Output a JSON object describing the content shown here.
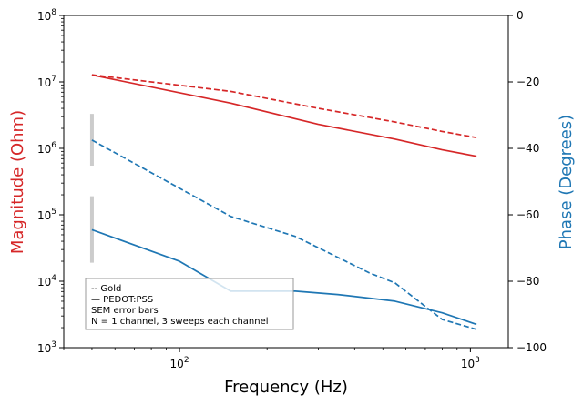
{
  "chart_data": {
    "type": "line",
    "xlabel": "Frequency (Hz)",
    "ylabel_left": "Magnitude (Ohm)",
    "ylabel_right": "Phase (Degrees)",
    "x_scale": "log",
    "y_left_scale": "log",
    "xlim": [
      40,
      1350
    ],
    "ylim_left": [
      1000,
      100000000
    ],
    "ylim_right": [
      -100,
      0
    ],
    "x_ticks": [
      {
        "value": 100,
        "label": "10",
        "exp": "2"
      },
      {
        "value": 1000,
        "label": "10",
        "exp": "3"
      }
    ],
    "y_left_ticks": [
      {
        "value": 1000,
        "label": "10",
        "exp": "3"
      },
      {
        "value": 10000,
        "label": "10",
        "exp": "4"
      },
      {
        "value": 100000,
        "label": "10",
        "exp": "5"
      },
      {
        "value": 1000000,
        "label": "10",
        "exp": "6"
      },
      {
        "value": 10000000,
        "label": "10",
        "exp": "7"
      },
      {
        "value": 100000000,
        "label": "10",
        "exp": "8"
      }
    ],
    "y_right_ticks": [
      {
        "value": 0,
        "label": "0"
      },
      {
        "value": -20,
        "label": "−20"
      },
      {
        "value": -40,
        "label": "−40"
      },
      {
        "value": -60,
        "label": "−60"
      },
      {
        "value": -80,
        "label": "−80"
      },
      {
        "value": -100,
        "label": "−100"
      }
    ],
    "series": [
      {
        "axis": "left",
        "style": "dashed",
        "color": "#d62728",
        "x": [
          50,
          150,
          300,
          550,
          800,
          1050
        ],
        "y": [
          12800000,
          7200000,
          4000000,
          2500000,
          1800000,
          1450000
        ]
      },
      {
        "axis": "left",
        "style": "solid",
        "color": "#d62728",
        "x": [
          50,
          150,
          300,
          550,
          800,
          1050
        ],
        "y": [
          12700000,
          4800000,
          2300000,
          1380000,
          950000,
          760000
        ]
      },
      {
        "axis": "right",
        "style": "dashed",
        "color": "#1f77b4",
        "x": [
          50,
          150,
          250,
          450,
          550,
          800,
          1050
        ],
        "y": [
          -37.5,
          -60.5,
          -66.5,
          -77.5,
          -80.5,
          -91.5,
          -94.5
        ]
      },
      {
        "axis": "right",
        "style": "solid",
        "color": "#1f77b4",
        "x": [
          50,
          100,
          150,
          250,
          350,
          550,
          800,
          1050
        ],
        "y": [
          -64.5,
          -74.0,
          -83.0,
          -83.0,
          -84.0,
          -86.0,
          -89.5,
          -93.0
        ]
      }
    ],
    "error_bars": [
      {
        "axis": "left",
        "x": 50,
        "low": 550000,
        "high": 3300000,
        "color": "#cccccc"
      },
      {
        "axis": "left",
        "x": 50,
        "low": 19000,
        "high": 190000,
        "color": "#cccccc"
      }
    ],
    "legend": {
      "placement": "lower-left",
      "lines": [
        "-- Gold",
        "— PEDOT:PSS",
        "SEM error bars",
        "N = 1 channel, 3 sweeps each channel"
      ]
    },
    "colors": {
      "left_axis_label": "#d62728",
      "right_axis_label": "#1f77b4"
    }
  }
}
